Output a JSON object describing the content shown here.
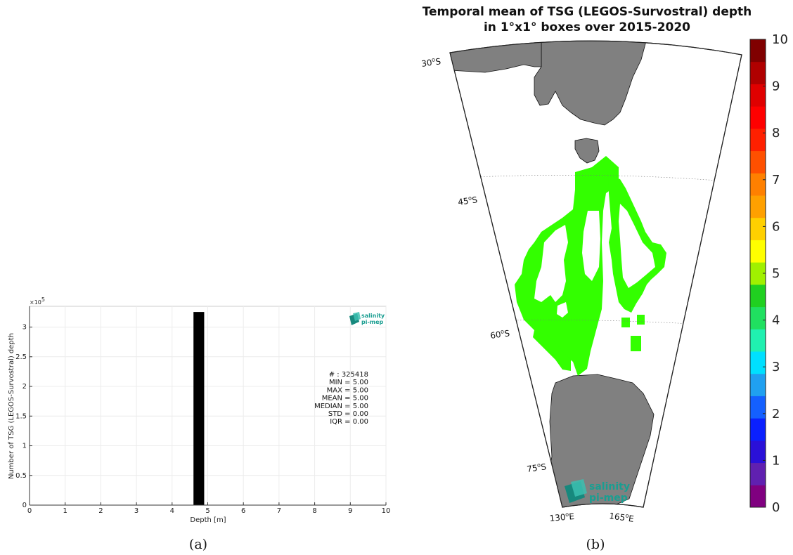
{
  "chart_data": [
    {
      "type": "bar",
      "panel": "(a)",
      "xlabel": "Depth [m]",
      "ylabel": "Number of TSG (LEGOS-Survostral) depth",
      "y_multiplier": "×10",
      "y_multiplier_exp": "5",
      "xlim": [
        0,
        10
      ],
      "ylim": [
        0,
        3.35
      ],
      "xticks": [
        "0",
        "1",
        "2",
        "3",
        "4",
        "5",
        "6",
        "7",
        "8",
        "9",
        "10"
      ],
      "yticks": [
        "0",
        "0.5",
        "1",
        "1.5",
        "2",
        "2.5",
        "3"
      ],
      "grid": true,
      "bars": [
        {
          "x_start": 4.6,
          "x_end": 4.9,
          "value": 3.25418
        }
      ],
      "stats": [
        "# : 325418",
        "MIN = 5.00",
        "MAX =  5.00",
        "MEAN = 5.00",
        "MEDIAN = 5.00",
        "STD = 0.00",
        "IQR = 0.00"
      ],
      "logo": [
        "salinity",
        "pi-mep"
      ]
    },
    {
      "type": "heatmap",
      "panel": "(b)",
      "title_line1": "Temporal mean of TSG (LEGOS-Survostral) depth",
      "title_line2": "in 1°x1° boxes over 2015-2020",
      "lat_labels": [
        "30",
        "45",
        "60",
        "75"
      ],
      "lat_suffix": "S",
      "lon_labels": [
        "130",
        "165"
      ],
      "lon_suffix": "E",
      "colorbar": {
        "min": 0,
        "max": 10,
        "ticks": [
          "0",
          "1",
          "2",
          "3",
          "4",
          "5",
          "6",
          "7",
          "8",
          "9",
          "10"
        ],
        "colors": [
          "#800080",
          "#6020b0",
          "#2a10d8",
          "#0a20ff",
          "#1460ff",
          "#20a0f0",
          "#00e0ff",
          "#20f0b0",
          "#20e060",
          "#20d020",
          "#a0f000",
          "#ffff00",
          "#ffd000",
          "#ffa000",
          "#ff8000",
          "#ff5000",
          "#ff2000",
          "#ff0000",
          "#e00000",
          "#b00000",
          "#800000"
        ]
      },
      "data_value": 5,
      "data_color": "#33ff00",
      "land_color": "#808080",
      "logo": [
        "salinity",
        "pi-mep"
      ]
    }
  ],
  "captions": [
    "(a)",
    "(b)"
  ]
}
